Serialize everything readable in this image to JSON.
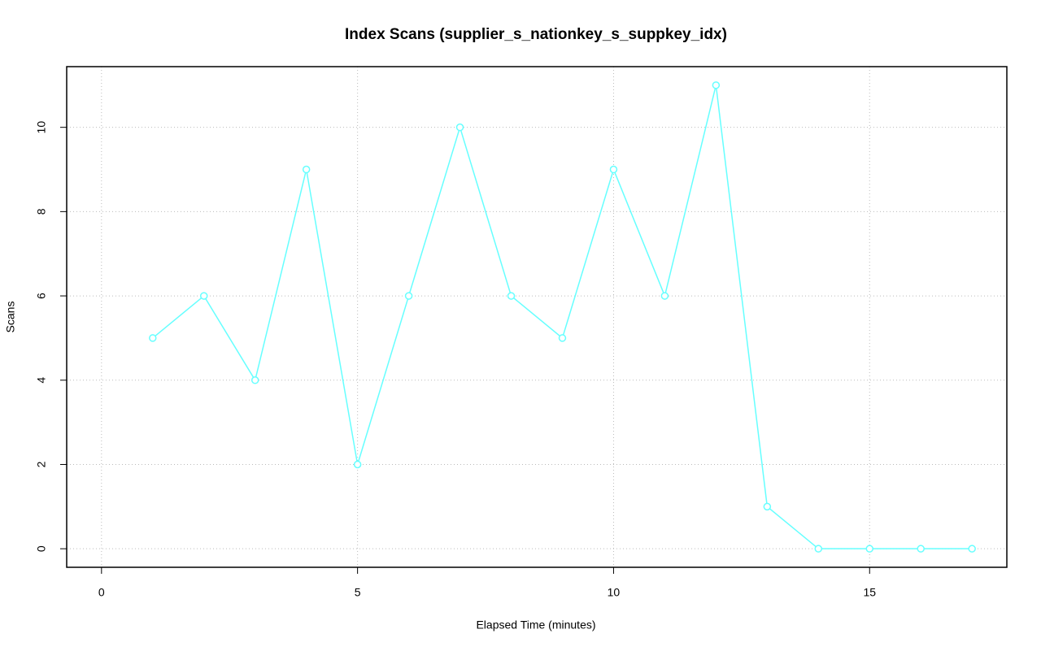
{
  "chart_data": {
    "type": "line",
    "title": "Index Scans (supplier_s_nationkey_s_suppkey_idx)",
    "x_label": "Elapsed Time (minutes)",
    "y_label": "Scans",
    "x": [
      1,
      2,
      3,
      4,
      5,
      6,
      7,
      8,
      9,
      10,
      11,
      12,
      13,
      14,
      15,
      16,
      17
    ],
    "series": [
      {
        "color": "#66ffff",
        "values": [
          5,
          6,
          4,
          9,
          2,
          6,
          10,
          6,
          5,
          9,
          6,
          11,
          1,
          0,
          0,
          0,
          0
        ]
      }
    ],
    "xlim": [
      -0.68,
      17.68
    ],
    "xticks": [
      0,
      5,
      10,
      15
    ],
    "ylim": [
      -0.44,
      11.44
    ],
    "yticks": [
      0,
      2,
      4,
      6,
      8,
      10
    ],
    "grid": true
  }
}
